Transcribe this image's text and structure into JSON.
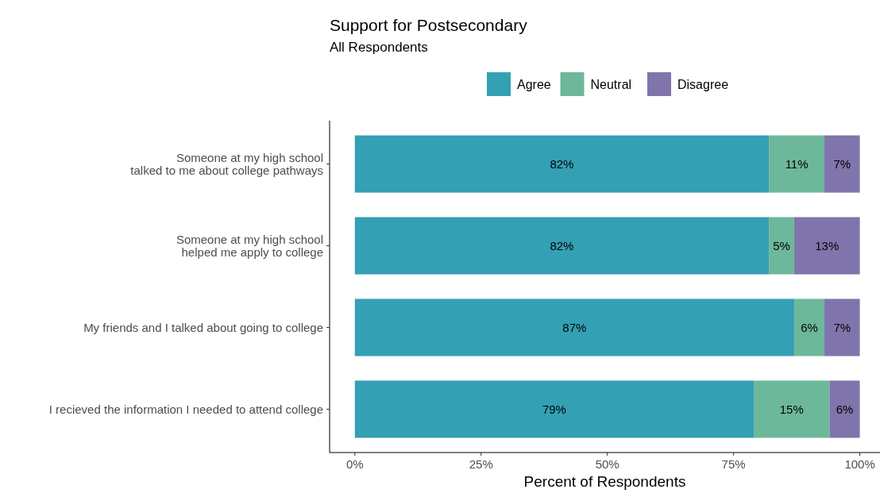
{
  "chart_data": {
    "type": "bar",
    "orientation": "horizontal",
    "stacked": true,
    "title": "Support for Postsecondary",
    "subtitle": "All Respondents",
    "xlabel": "Percent of Respondents",
    "categories": [
      "Someone at my high school\ntalked to me about college pathways",
      "Someone at my high school\nhelped me apply to college",
      "My friends and I talked about going to college",
      "I recieved the information I needed to attend college"
    ],
    "series": [
      {
        "name": "Agree",
        "color": "#33a0b4",
        "values": [
          82,
          82,
          87,
          79
        ],
        "value_labels": [
          "82%",
          "82%",
          "87%",
          "79%"
        ]
      },
      {
        "name": "Neutral",
        "color": "#6db89a",
        "values": [
          11,
          5,
          6,
          15
        ],
        "value_labels": [
          "11%",
          "5%",
          "6%",
          "15%"
        ]
      },
      {
        "name": "Disagree",
        "color": "#8074ac",
        "values": [
          7,
          13,
          7,
          6
        ],
        "value_labels": [
          "7%",
          "13%",
          "7%",
          "6%"
        ]
      }
    ],
    "xlim": [
      -5,
      104
    ],
    "xticks": [
      {
        "value": 0,
        "label": "0%"
      },
      {
        "value": 25,
        "label": "25%"
      },
      {
        "value": 50,
        "label": "50%"
      },
      {
        "value": 75,
        "label": "75%"
      },
      {
        "value": 100,
        "label": "100%"
      }
    ],
    "legend": "top",
    "grid": false
  }
}
